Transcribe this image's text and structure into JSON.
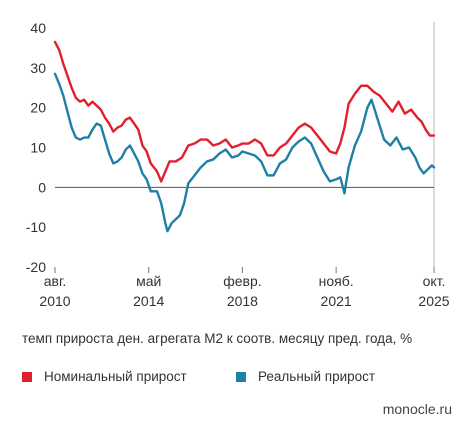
{
  "chart_data": {
    "type": "line",
    "caption": "темп прироста ден. агрегата М2 к соотв. месяцу пред. года, %",
    "ylim": [
      -20,
      40
    ],
    "yticks": [
      -20,
      -10,
      0,
      10,
      20,
      30,
      40
    ],
    "x_range": [
      "2010-08",
      "2025-10"
    ],
    "xticks": [
      {
        "date": "2010-08",
        "line1": "авг.",
        "line2": "2010"
      },
      {
        "date": "2014-05",
        "line1": "май",
        "line2": "2014"
      },
      {
        "date": "2018-02",
        "line1": "февр.",
        "line2": "2018"
      },
      {
        "date": "2021-11",
        "line1": "нояб.",
        "line2": "2021"
      },
      {
        "date": "2025-10",
        "line1": "окт.",
        "line2": "2025"
      }
    ],
    "grid": false,
    "legend_position": "bottom-left",
    "series": [
      {
        "name": "Номинальный прирост",
        "color": "#e0202f",
        "points": [
          [
            "2010-08",
            36.5
          ],
          [
            "2010-10",
            34.5
          ],
          [
            "2010-12",
            31
          ],
          [
            "2011-02",
            28
          ],
          [
            "2011-04",
            25
          ],
          [
            "2011-06",
            22.5
          ],
          [
            "2011-08",
            21.5
          ],
          [
            "2011-10",
            22
          ],
          [
            "2011-12",
            20.5
          ],
          [
            "2012-02",
            21.5
          ],
          [
            "2012-04",
            20.5
          ],
          [
            "2012-06",
            19.5
          ],
          [
            "2012-08",
            17.5
          ],
          [
            "2012-10",
            16
          ],
          [
            "2012-12",
            14
          ],
          [
            "2013-02",
            15
          ],
          [
            "2013-04",
            15.5
          ],
          [
            "2013-06",
            17
          ],
          [
            "2013-08",
            17.5
          ],
          [
            "2013-10",
            16
          ],
          [
            "2013-12",
            14.5
          ],
          [
            "2014-02",
            10.5
          ],
          [
            "2014-04",
            9
          ],
          [
            "2014-06",
            6
          ],
          [
            "2014-09",
            4
          ],
          [
            "2014-11",
            1.5
          ],
          [
            "2015-01",
            4
          ],
          [
            "2015-03",
            6.5
          ],
          [
            "2015-06",
            6.5
          ],
          [
            "2015-09",
            7.5
          ],
          [
            "2015-12",
            10.5
          ],
          [
            "2016-03",
            11
          ],
          [
            "2016-06",
            12
          ],
          [
            "2016-09",
            12
          ],
          [
            "2016-12",
            10.5
          ],
          [
            "2017-03",
            11
          ],
          [
            "2017-06",
            12
          ],
          [
            "2017-09",
            10
          ],
          [
            "2017-12",
            10.5
          ],
          [
            "2018-02",
            11
          ],
          [
            "2018-05",
            11
          ],
          [
            "2018-08",
            12
          ],
          [
            "2018-11",
            11
          ],
          [
            "2019-02",
            8
          ],
          [
            "2019-05",
            8
          ],
          [
            "2019-08",
            10
          ],
          [
            "2019-11",
            11
          ],
          [
            "2020-02",
            13
          ],
          [
            "2020-05",
            15
          ],
          [
            "2020-08",
            16
          ],
          [
            "2020-11",
            15
          ],
          [
            "2021-02",
            13
          ],
          [
            "2021-05",
            11
          ],
          [
            "2021-08",
            9
          ],
          [
            "2021-11",
            8.5
          ],
          [
            "2022-01",
            11
          ],
          [
            "2022-03",
            15
          ],
          [
            "2022-05",
            21
          ],
          [
            "2022-08",
            23.5
          ],
          [
            "2022-11",
            25.5
          ],
          [
            "2023-02",
            25.5
          ],
          [
            "2023-05",
            24
          ],
          [
            "2023-08",
            23
          ],
          [
            "2023-11",
            21
          ],
          [
            "2024-02",
            19
          ],
          [
            "2024-05",
            21.5
          ],
          [
            "2024-08",
            18.5
          ],
          [
            "2024-11",
            19.5
          ],
          [
            "2025-02",
            17.5
          ],
          [
            "2025-04",
            16.5
          ],
          [
            "2025-06",
            14.5
          ],
          [
            "2025-08",
            13
          ],
          [
            "2025-10",
            13
          ]
        ]
      },
      {
        "name": "Реальный прирост",
        "color": "#1f7fa6",
        "points": [
          [
            "2010-08",
            28.5
          ],
          [
            "2010-10",
            26
          ],
          [
            "2010-12",
            23
          ],
          [
            "2011-02",
            19
          ],
          [
            "2011-04",
            15
          ],
          [
            "2011-06",
            12.5
          ],
          [
            "2011-08",
            12
          ],
          [
            "2011-10",
            12.5
          ],
          [
            "2011-12",
            12.5
          ],
          [
            "2012-02",
            14.5
          ],
          [
            "2012-04",
            16
          ],
          [
            "2012-06",
            15.5
          ],
          [
            "2012-08",
            12
          ],
          [
            "2012-10",
            8.5
          ],
          [
            "2012-12",
            6
          ],
          [
            "2013-02",
            6.5
          ],
          [
            "2013-04",
            7.5
          ],
          [
            "2013-06",
            9.5
          ],
          [
            "2013-08",
            10.5
          ],
          [
            "2013-10",
            8.5
          ],
          [
            "2013-12",
            6.5
          ],
          [
            "2014-02",
            3.5
          ],
          [
            "2014-04",
            2
          ],
          [
            "2014-06",
            -1
          ],
          [
            "2014-09",
            -1
          ],
          [
            "2014-11",
            -4
          ],
          [
            "2015-01",
            -9
          ],
          [
            "2015-02",
            -11
          ],
          [
            "2015-04",
            -9
          ],
          [
            "2015-06",
            -8
          ],
          [
            "2015-08",
            -7
          ],
          [
            "2015-10",
            -4
          ],
          [
            "2015-12",
            1
          ],
          [
            "2016-03",
            3
          ],
          [
            "2016-06",
            5
          ],
          [
            "2016-09",
            6.5
          ],
          [
            "2016-12",
            7
          ],
          [
            "2017-03",
            8.5
          ],
          [
            "2017-06",
            9.5
          ],
          [
            "2017-09",
            7.5
          ],
          [
            "2017-12",
            8
          ],
          [
            "2018-02",
            9
          ],
          [
            "2018-05",
            8.5
          ],
          [
            "2018-08",
            8
          ],
          [
            "2018-11",
            6.5
          ],
          [
            "2019-02",
            3
          ],
          [
            "2019-05",
            3
          ],
          [
            "2019-08",
            6
          ],
          [
            "2019-11",
            7
          ],
          [
            "2020-02",
            10
          ],
          [
            "2020-05",
            11.5
          ],
          [
            "2020-08",
            12.5
          ],
          [
            "2020-11",
            11
          ],
          [
            "2021-02",
            7.5
          ],
          [
            "2021-05",
            4
          ],
          [
            "2021-08",
            1.5
          ],
          [
            "2021-11",
            2
          ],
          [
            "2022-01",
            2.5
          ],
          [
            "2022-03",
            -1.5
          ],
          [
            "2022-05",
            5
          ],
          [
            "2022-08",
            10.5
          ],
          [
            "2022-11",
            14
          ],
          [
            "2023-02",
            20
          ],
          [
            "2023-04",
            22
          ],
          [
            "2023-07",
            17
          ],
          [
            "2023-10",
            12
          ],
          [
            "2024-01",
            10.5
          ],
          [
            "2024-04",
            12.5
          ],
          [
            "2024-07",
            9.5
          ],
          [
            "2024-10",
            10
          ],
          [
            "2025-01",
            7.5
          ],
          [
            "2025-03",
            5
          ],
          [
            "2025-05",
            3.5
          ],
          [
            "2025-07",
            4.5
          ],
          [
            "2025-09",
            5.5
          ],
          [
            "2025-10",
            5
          ]
        ]
      }
    ]
  },
  "footer": {
    "brand": "monocle.ru"
  }
}
